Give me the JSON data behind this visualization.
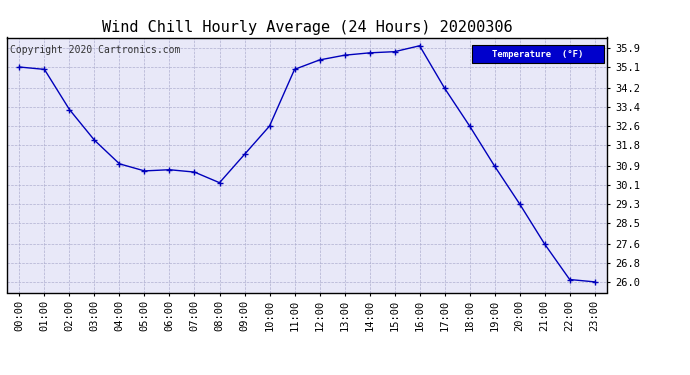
{
  "title": "Wind Chill Hourly Average (24 Hours) 20200306",
  "copyright_text": "Copyright 2020 Cartronics.com",
  "legend_label": "Temperature  (°F)",
  "legend_bg": "#0000cc",
  "legend_fg": "#ffffff",
  "x_labels": [
    "00:00",
    "01:00",
    "02:00",
    "03:00",
    "04:00",
    "05:00",
    "06:00",
    "07:00",
    "08:00",
    "09:00",
    "10:00",
    "11:00",
    "12:00",
    "13:00",
    "14:00",
    "15:00",
    "16:00",
    "17:00",
    "18:00",
    "19:00",
    "20:00",
    "21:00",
    "22:00",
    "23:00"
  ],
  "y_values": [
    35.1,
    35.0,
    33.3,
    32.0,
    31.0,
    30.7,
    30.75,
    30.65,
    30.2,
    31.4,
    32.6,
    35.0,
    35.4,
    35.6,
    35.7,
    35.75,
    36.0,
    34.2,
    32.6,
    30.9,
    29.3,
    27.6,
    26.1,
    26.0
  ],
  "ylim_min": 25.55,
  "ylim_max": 36.35,
  "yticks": [
    26.0,
    26.8,
    27.6,
    28.5,
    29.3,
    30.1,
    30.9,
    31.8,
    32.6,
    33.4,
    34.2,
    35.1,
    35.9
  ],
  "line_color": "#0000bb",
  "marker": "+",
  "marker_size": 4,
  "marker_color": "#0000bb",
  "fig_bg": "#ffffff",
  "plot_bg": "#e8e8f8",
  "grid_color": "#aaaacc",
  "grid_linestyle": "--",
  "title_fontsize": 11,
  "axis_fontsize": 7.5,
  "copyright_fontsize": 7,
  "border_color": "#000000"
}
